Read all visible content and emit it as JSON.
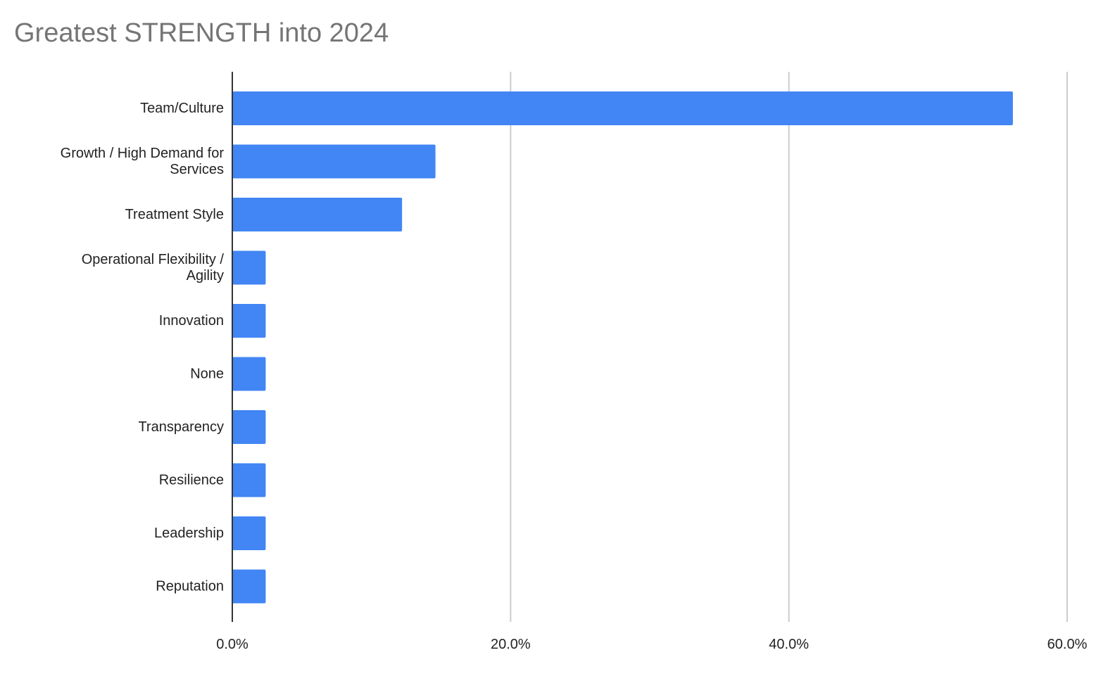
{
  "chart_data": {
    "type": "bar",
    "orientation": "horizontal",
    "title": "Greatest STRENGTH into 2024",
    "xlabel": "",
    "ylabel": "",
    "categories": [
      "Team/Culture",
      "Growth / High Demand for Services",
      "Treatment Style",
      "Operational Flexibility / Agility",
      "Innovation",
      "None",
      "Transparency",
      "Resilience",
      "Leadership",
      "Reputation"
    ],
    "category_lines": [
      [
        "Team/Culture"
      ],
      [
        "Growth / High Demand for",
        "Services"
      ],
      [
        "Treatment Style"
      ],
      [
        "Operational Flexibility /",
        "Agility"
      ],
      [
        "Innovation"
      ],
      [
        "None"
      ],
      [
        "Transparency"
      ],
      [
        "Resilience"
      ],
      [
        "Leadership"
      ],
      [
        "Reputation"
      ]
    ],
    "values": [
      56.1,
      14.6,
      12.2,
      2.4,
      2.4,
      2.4,
      2.4,
      2.4,
      2.4,
      2.4
    ],
    "xlim": [
      0,
      60
    ],
    "xticks": [
      0,
      20,
      40,
      60
    ],
    "xtick_labels": [
      "0.0%",
      "20.0%",
      "40.0%",
      "60.0%"
    ],
    "grid": true,
    "legend": "none",
    "bar_color": "#4285f4",
    "grid_color": "#cccccc",
    "axis_color": "#333333"
  }
}
